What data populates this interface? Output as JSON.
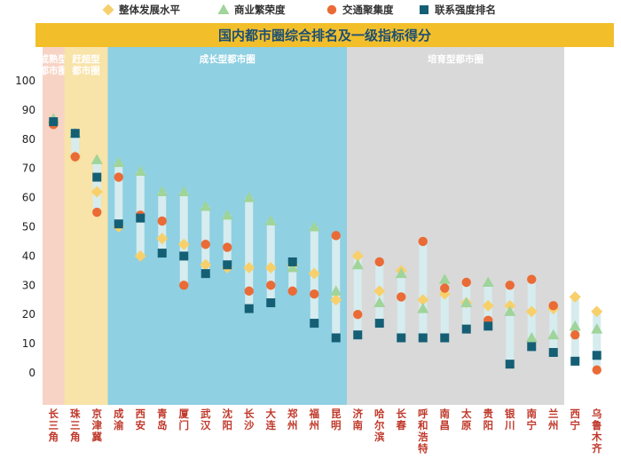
{
  "legend": {
    "items": [
      {
        "label": "整体发展水平",
        "marker": "diamond",
        "color": "#f7d06b"
      },
      {
        "label": "商业繁荣度",
        "marker": "triangle",
        "color": "#9fd49a"
      },
      {
        "label": "交通聚集度",
        "marker": "circle",
        "color": "#ea6b36"
      },
      {
        "label": "联系强度排名",
        "marker": "square",
        "color": "#155f75"
      }
    ]
  },
  "colors": {
    "title_bar": "#f2bf2b",
    "title_text": "#1d4f73",
    "band_mature": "#f7d3c5",
    "band_catchup": "#f8e3a8",
    "band_growing": "#8fd0e2",
    "band_cultivating": "#d9d9d9",
    "range_bar": "#d6ecef",
    "axis_text": "#222222",
    "band_label": "#ffffff",
    "category_label": "#c0392b"
  },
  "chart_data": {
    "type": "range-dot",
    "title": "国内都市圈综合排名及一级指标得分",
    "ylim": [
      0,
      100
    ],
    "yticks": [
      0,
      10,
      20,
      30,
      40,
      50,
      60,
      70,
      80,
      90,
      100
    ],
    "groups": [
      {
        "label": "成熟型\n都市圈",
        "start": 0,
        "end": 1,
        "color": "band_mature"
      },
      {
        "label": "赶超型\n都市圈",
        "start": 1,
        "end": 3,
        "color": "band_catchup"
      },
      {
        "label": "成长型都市圈",
        "start": 3,
        "end": 14,
        "color": "band_growing"
      },
      {
        "label": "培育型都市圈",
        "start": 14,
        "end": 24,
        "color": "band_cultivating"
      }
    ],
    "categories": [
      "长三角",
      "珠三角",
      "京津冀",
      "成渝",
      "西安",
      "青岛",
      "厦门",
      "武汉",
      "沈阳",
      "长沙",
      "大连",
      "郑州",
      "福州",
      "昆明",
      "济南",
      "哈尔滨",
      "长春",
      "呼和浩特",
      "南昌",
      "太原",
      "贵阳",
      "银川",
      "南宁",
      "兰州",
      "西宁",
      "乌鲁木齐"
    ],
    "series": [
      {
        "name": "整体发展水平",
        "marker": "diamond",
        "color": "#f7d06b",
        "values": [
          86,
          74,
          62,
          50,
          40,
          46,
          44,
          37,
          36,
          36,
          36,
          37,
          34,
          25,
          40,
          28,
          35,
          25,
          27,
          24,
          23,
          23,
          21,
          22,
          26,
          21
        ]
      },
      {
        "name": "商业繁荣度",
        "marker": "triangle",
        "color": "#9fd49a",
        "values": [
          87,
          82,
          73,
          72,
          69,
          62,
          62,
          57,
          54,
          60,
          52,
          36,
          50,
          28,
          37,
          24,
          34,
          22,
          32,
          24,
          31,
          21,
          12,
          13,
          16,
          15
        ]
      },
      {
        "name": "交通聚集度",
        "marker": "circle",
        "color": "#ea6b36",
        "values": [
          85,
          74,
          55,
          67,
          54,
          52,
          30,
          44,
          43,
          28,
          30,
          28,
          27,
          47,
          20,
          38,
          26,
          45,
          29,
          31,
          18,
          30,
          32,
          23,
          13,
          1
        ]
      },
      {
        "name": "联系强度排名",
        "marker": "square",
        "color": "#155f75",
        "values": [
          86,
          82,
          67,
          51,
          53,
          41,
          40,
          34,
          37,
          22,
          24,
          38,
          17,
          12,
          13,
          17,
          12,
          12,
          12,
          15,
          16,
          3,
          9,
          7,
          4,
          6
        ]
      }
    ]
  }
}
